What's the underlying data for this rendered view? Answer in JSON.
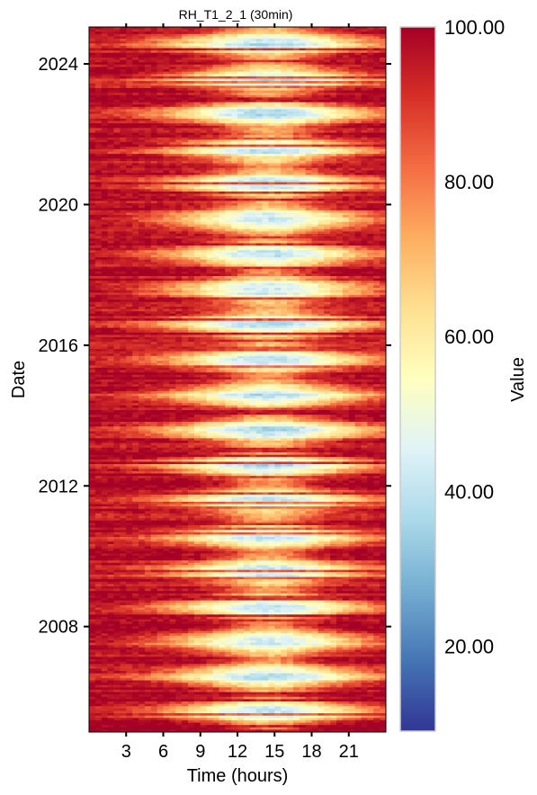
{
  "chart_data": {
    "type": "heatmap",
    "title": "RH_T1_2_1 (30min)",
    "xlabel": "Time (hours)",
    "ylabel": "Date",
    "x_ticks": [
      3,
      6,
      9,
      12,
      15,
      18,
      21
    ],
    "x_range": [
      0,
      24
    ],
    "y_ticks": [
      "2008",
      "2012",
      "2016",
      "2020",
      "2024"
    ],
    "y_range_years": [
      2005.0,
      2025.05
    ],
    "colorbar": {
      "label": "Value",
      "min": 9,
      "max": 100,
      "ticks": [
        "20.00",
        "40.00",
        "60.00",
        "80.00",
        "100.00"
      ],
      "tick_values": [
        20,
        40,
        60,
        80,
        100
      ],
      "colormap": "RdYlBu_r",
      "colors": [
        "#313695",
        "#4575b4",
        "#74add1",
        "#abd9e9",
        "#e0f3f8",
        "#ffffbf",
        "#fee090",
        "#fdae61",
        "#f46d43",
        "#d73027",
        "#a50026"
      ]
    },
    "pattern": {
      "night_value": 97,
      "midday_min_summer": 40,
      "midday_min_winter": 75,
      "summer_peak_fraction_of_year": 0.58
    }
  }
}
